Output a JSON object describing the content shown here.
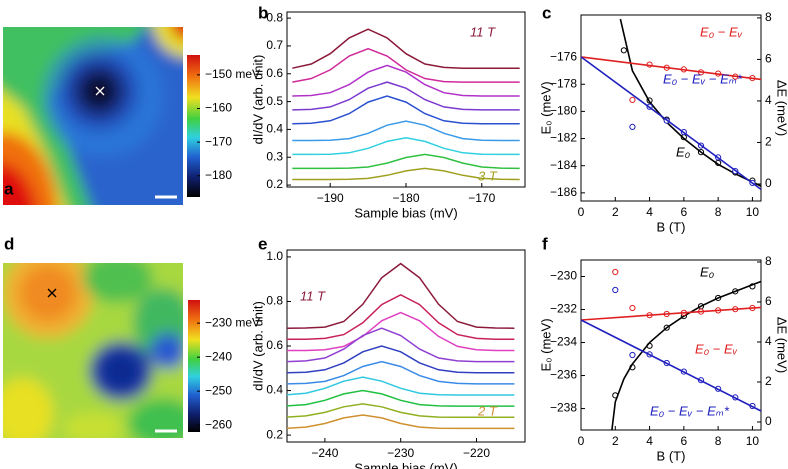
{
  "chart_data": [
    {
      "type": "heatmap",
      "panel_label": "a",
      "clim": [
        -186.3,
        -144.1
      ],
      "cticks": [
        {
          "value": -150,
          "label": "−150 meV"
        },
        {
          "value": -160,
          "label": "−160"
        },
        {
          "value": -170,
          "label": "−170"
        },
        {
          "value": -180,
          "label": "−180"
        }
      ]
    },
    {
      "type": "line",
      "panel_label": "b",
      "xlabel": "Sample bias (mV)",
      "ylabel": "dI/dV (arb. unit)",
      "x": [
        -195,
        -192.5,
        -190,
        -187.5,
        -185,
        -182.5,
        -180,
        -177.5,
        -175,
        -172.5,
        -170,
        -167.5,
        -165
      ],
      "xlim": [
        -195.7,
        -164.3
      ],
      "xticks": [
        {
          "value": -190,
          "label": "−190"
        },
        {
          "value": -180,
          "label": "−180"
        },
        {
          "value": -170,
          "label": "−170"
        }
      ],
      "ylim": [
        0.193,
        0.822
      ],
      "yticks": [
        0.2,
        0.3,
        0.4,
        0.5,
        0.6,
        0.7,
        0.8
      ],
      "series": [
        {
          "color": "#8b1a3a",
          "values": [
            0.62,
            0.635,
            0.672,
            0.729,
            0.76,
            0.729,
            0.672,
            0.635,
            0.623,
            0.62,
            0.62,
            0.62,
            0.62
          ]
        },
        {
          "color": "#d02a9a",
          "values": [
            0.57,
            0.583,
            0.614,
            0.664,
            0.69,
            0.664,
            0.614,
            0.583,
            0.572,
            0.57,
            0.57,
            0.57,
            0.57
          ]
        },
        {
          "color": "#b030c8",
          "values": [
            0.52,
            0.522,
            0.532,
            0.561,
            0.606,
            0.63,
            0.606,
            0.561,
            0.532,
            0.522,
            0.52,
            0.52,
            0.52
          ]
        },
        {
          "color": "#7a3ad0",
          "values": [
            0.47,
            0.472,
            0.481,
            0.507,
            0.548,
            0.57,
            0.548,
            0.507,
            0.481,
            0.472,
            0.47,
            0.47,
            0.47
          ]
        },
        {
          "color": "#2a50d0",
          "values": [
            0.42,
            0.422,
            0.431,
            0.457,
            0.498,
            0.52,
            0.498,
            0.457,
            0.431,
            0.422,
            0.42,
            0.42,
            0.42
          ]
        },
        {
          "color": "#3a9ae8",
          "values": [
            0.36,
            0.36,
            0.361,
            0.367,
            0.386,
            0.415,
            0.43,
            0.415,
            0.386,
            0.367,
            0.361,
            0.36,
            0.36
          ]
        },
        {
          "color": "#30d0e0",
          "values": [
            0.31,
            0.31,
            0.311,
            0.316,
            0.332,
            0.357,
            0.37,
            0.357,
            0.332,
            0.316,
            0.311,
            0.31,
            0.31
          ]
        },
        {
          "color": "#30c040",
          "values": [
            0.26,
            0.26,
            0.26,
            0.261,
            0.265,
            0.279,
            0.299,
            0.31,
            0.299,
            0.279,
            0.265,
            0.261,
            0.26
          ]
        },
        {
          "color": "#a0a020",
          "values": [
            0.22,
            0.22,
            0.22,
            0.221,
            0.224,
            0.235,
            0.251,
            0.26,
            0.251,
            0.235,
            0.224,
            0.221,
            0.22
          ]
        }
      ],
      "annotations": [
        {
          "text": "11 T",
          "color": "#8b1a3a"
        },
        {
          "text": "3 T",
          "color": "#a0a020"
        }
      ]
    },
    {
      "type": "scatter",
      "panel_label": "c",
      "xlabel": "B (T)",
      "ylabel": "E₀ (meV)",
      "y2label": "ΔE (meV)",
      "xlim": [
        0,
        10.5
      ],
      "xticks": [
        0,
        2,
        4,
        6,
        8,
        10
      ],
      "ylim": [
        -186.6,
        -172.9
      ],
      "yticks": [
        {
          "value": -176,
          "label": "−176"
        },
        {
          "value": -178,
          "label": "−178"
        },
        {
          "value": -180,
          "label": "−180"
        },
        {
          "value": -182,
          "label": "−182"
        },
        {
          "value": -184,
          "label": "−184"
        },
        {
          "value": -186,
          "label": "−186"
        }
      ],
      "y2lim": [
        -0.82,
        8.14
      ],
      "y2ticks": [
        0,
        2,
        4,
        6,
        8
      ],
      "series": [
        {
          "color": "#000000",
          "mode": "markers",
          "axis": "y",
          "x": [
            2.5,
            4,
            5,
            6,
            7,
            8,
            9,
            10
          ],
          "values": [
            -175.5,
            -179.2,
            -180.6,
            -181.9,
            -183.0,
            -183.8,
            -184.5,
            -185.1
          ]
        },
        {
          "color": "#000000",
          "mode": "line",
          "axis": "y",
          "x": [
            2.3,
            3,
            4,
            5,
            6,
            7,
            8,
            9,
            10,
            10.5
          ],
          "values": [
            -173.2,
            -177.0,
            -179.3,
            -180.8,
            -182.0,
            -183.0,
            -183.9,
            -184.6,
            -185.2,
            -185.5
          ]
        },
        {
          "color": "#e02020",
          "mode": "markers",
          "axis": "y2",
          "x": [
            3,
            4,
            5,
            6,
            7,
            8,
            9,
            10
          ],
          "values": [
            4.05,
            5.75,
            5.6,
            5.52,
            5.38,
            5.32,
            5.17,
            5.1
          ]
        },
        {
          "color": "#e02020",
          "mode": "line",
          "axis": "y2",
          "x": [
            0,
            10.5
          ],
          "values": [
            6.12,
            5.04
          ]
        },
        {
          "color": "#2020c0",
          "mode": "markers",
          "axis": "y2",
          "x": [
            3,
            4,
            5,
            6,
            7,
            8,
            9,
            10
          ],
          "values": [
            2.75,
            3.72,
            3.05,
            2.5,
            1.85,
            1.28,
            0.62,
            0.05
          ]
        },
        {
          "color": "#2020c0",
          "mode": "line",
          "axis": "y2",
          "x": [
            0,
            10.5
          ],
          "values": [
            6.12,
            -0.26
          ]
        }
      ],
      "annotations": [
        {
          "text": "E₀ − Eᵥ",
          "color": "#e02020"
        },
        {
          "text": "E₀ − Eᵥ − Eₘ*",
          "color": "#2020c0"
        },
        {
          "text": "E₀",
          "color": "#000000"
        }
      ]
    },
    {
      "type": "heatmap",
      "panel_label": "d",
      "clim": [
        -262,
        -223.2
      ],
      "cticks": [
        {
          "value": -230,
          "label": "−230 meV"
        },
        {
          "value": -240,
          "label": "−240"
        },
        {
          "value": -250,
          "label": "−250"
        },
        {
          "value": -260,
          "label": "−260"
        }
      ]
    },
    {
      "type": "line",
      "panel_label": "e",
      "xlabel": "Sample bias (mV)",
      "ylabel": "dI/dV (arb. unit)",
      "x": [
        -245,
        -242.5,
        -240,
        -237.5,
        -235,
        -232.5,
        -230,
        -227.5,
        -225,
        -222.5,
        -220,
        -217.5,
        -215
      ],
      "xlim": [
        -245,
        -213.6
      ],
      "xticks": [
        {
          "value": -240,
          "label": "−240"
        },
        {
          "value": -230,
          "label": "−230"
        },
        {
          "value": -220,
          "label": "−220"
        }
      ],
      "ylim": [
        0.169,
        1.031
      ],
      "yticks": [
        0.2,
        0.4,
        0.6,
        0.8,
        {
          "value": 1,
          "label": "1.0"
        }
      ],
      "series": [
        {
          "color": "#8b1a3a",
          "values": [
            0.68,
            0.681,
            0.685,
            0.71,
            0.787,
            0.906,
            0.97,
            0.906,
            0.787,
            0.71,
            0.685,
            0.681,
            0.68
          ]
        },
        {
          "color": "#c8205a",
          "values": [
            0.63,
            0.63,
            0.634,
            0.651,
            0.704,
            0.786,
            0.83,
            0.786,
            0.704,
            0.651,
            0.634,
            0.63,
            0.63
          ]
        },
        {
          "color": "#e040c0",
          "values": [
            0.58,
            0.58,
            0.583,
            0.598,
            0.643,
            0.713,
            0.75,
            0.713,
            0.643,
            0.598,
            0.583,
            0.58,
            0.58
          ]
        },
        {
          "color": "#9040d0",
          "values": [
            0.53,
            0.533,
            0.546,
            0.586,
            0.647,
            0.68,
            0.647,
            0.586,
            0.546,
            0.533,
            0.53,
            0.53,
            0.53
          ]
        },
        {
          "color": "#3040c0",
          "values": [
            0.48,
            0.482,
            0.493,
            0.524,
            0.574,
            0.6,
            0.574,
            0.524,
            0.493,
            0.482,
            0.48,
            0.48,
            0.48
          ]
        },
        {
          "color": "#3a8ae8",
          "values": [
            0.43,
            0.432,
            0.441,
            0.467,
            0.508,
            0.53,
            0.508,
            0.467,
            0.441,
            0.432,
            0.43,
            0.43,
            0.43
          ]
        },
        {
          "color": "#30c8e0",
          "values": [
            0.381,
            0.388,
            0.41,
            0.442,
            0.46,
            0.442,
            0.41,
            0.388,
            0.381,
            0.38,
            0.38,
            0.38,
            0.38
          ]
        },
        {
          "color": "#20c040",
          "values": [
            0.331,
            0.337,
            0.356,
            0.385,
            0.4,
            0.385,
            0.356,
            0.337,
            0.331,
            0.33,
            0.33,
            0.33,
            0.33
          ]
        },
        {
          "color": "#90b020",
          "values": [
            0.281,
            0.286,
            0.302,
            0.327,
            0.34,
            0.327,
            0.302,
            0.286,
            0.281,
            0.28,
            0.28,
            0.28,
            0.28
          ]
        },
        {
          "color": "#d09030",
          "values": [
            0.231,
            0.236,
            0.252,
            0.277,
            0.29,
            0.277,
            0.252,
            0.236,
            0.231,
            0.23,
            0.23,
            0.23,
            0.23
          ]
        }
      ],
      "annotations": [
        {
          "text": "11 T",
          "color": "#8b1a3a"
        },
        {
          "text": "2 T",
          "color": "#d09030"
        }
      ]
    },
    {
      "type": "scatter",
      "panel_label": "f",
      "xlabel": "B (T)",
      "ylabel": "E₀ (meV)",
      "y2label": "ΔE (meV)",
      "xlim": [
        0,
        10.5
      ],
      "xticks": [
        0,
        2,
        4,
        6,
        8,
        10
      ],
      "ylim": [
        -239.3,
        -229
      ],
      "yticks": [
        {
          "value": -230,
          "label": "−230"
        },
        {
          "value": -232,
          "label": "−232"
        },
        {
          "value": -234,
          "label": "−234"
        },
        {
          "value": -236,
          "label": "−236"
        },
        {
          "value": -238,
          "label": "−238"
        }
      ],
      "y2lim": [
        -0.4,
        8.1
      ],
      "y2ticks": [
        0,
        2,
        4,
        6,
        8
      ],
      "series": [
        {
          "color": "#000000",
          "mode": "markers",
          "axis": "y",
          "x": [
            2,
            3,
            4,
            5,
            6,
            7,
            8,
            9,
            10
          ],
          "values": [
            -237.2,
            -235.5,
            -234.2,
            -233.1,
            -232.4,
            -231.8,
            -231.3,
            -230.9,
            -230.6
          ]
        },
        {
          "color": "#000000",
          "mode": "line",
          "axis": "y",
          "x": [
            1.8,
            2,
            2.5,
            3,
            4,
            5,
            6,
            7,
            8,
            9,
            10,
            10.5
          ],
          "values": [
            -239.3,
            -237.6,
            -236.2,
            -235.3,
            -234.0,
            -233.1,
            -232.4,
            -231.8,
            -231.3,
            -230.9,
            -230.5,
            -230.3
          ]
        },
        {
          "color": "#e02020",
          "mode": "markers",
          "axis": "y2",
          "x": [
            2,
            3,
            4,
            5,
            6,
            7,
            8,
            9,
            10
          ],
          "values": [
            7.5,
            5.7,
            5.34,
            5.4,
            5.46,
            5.52,
            5.58,
            5.64,
            5.7
          ]
        },
        {
          "color": "#e02020",
          "mode": "line",
          "axis": "y2",
          "x": [
            0,
            10.5
          ],
          "values": [
            5.1,
            5.73
          ]
        },
        {
          "color": "#2020c0",
          "mode": "markers",
          "axis": "y2",
          "x": [
            2,
            3,
            4,
            5,
            6,
            7,
            8,
            9,
            10
          ],
          "values": [
            6.6,
            3.35,
            3.38,
            2.95,
            2.52,
            2.09,
            1.66,
            1.23,
            0.8
          ]
        },
        {
          "color": "#2020c0",
          "mode": "line",
          "axis": "y2",
          "x": [
            0,
            10.5
          ],
          "values": [
            5.1,
            0.55
          ]
        }
      ],
      "annotations": [
        {
          "text": "E₀",
          "color": "#000000"
        },
        {
          "text": "E₀ − Eᵥ",
          "color": "#e02020"
        },
        {
          "text": "E₀ − Eᵥ − Eₘ*",
          "color": "#2020c0"
        }
      ]
    }
  ]
}
